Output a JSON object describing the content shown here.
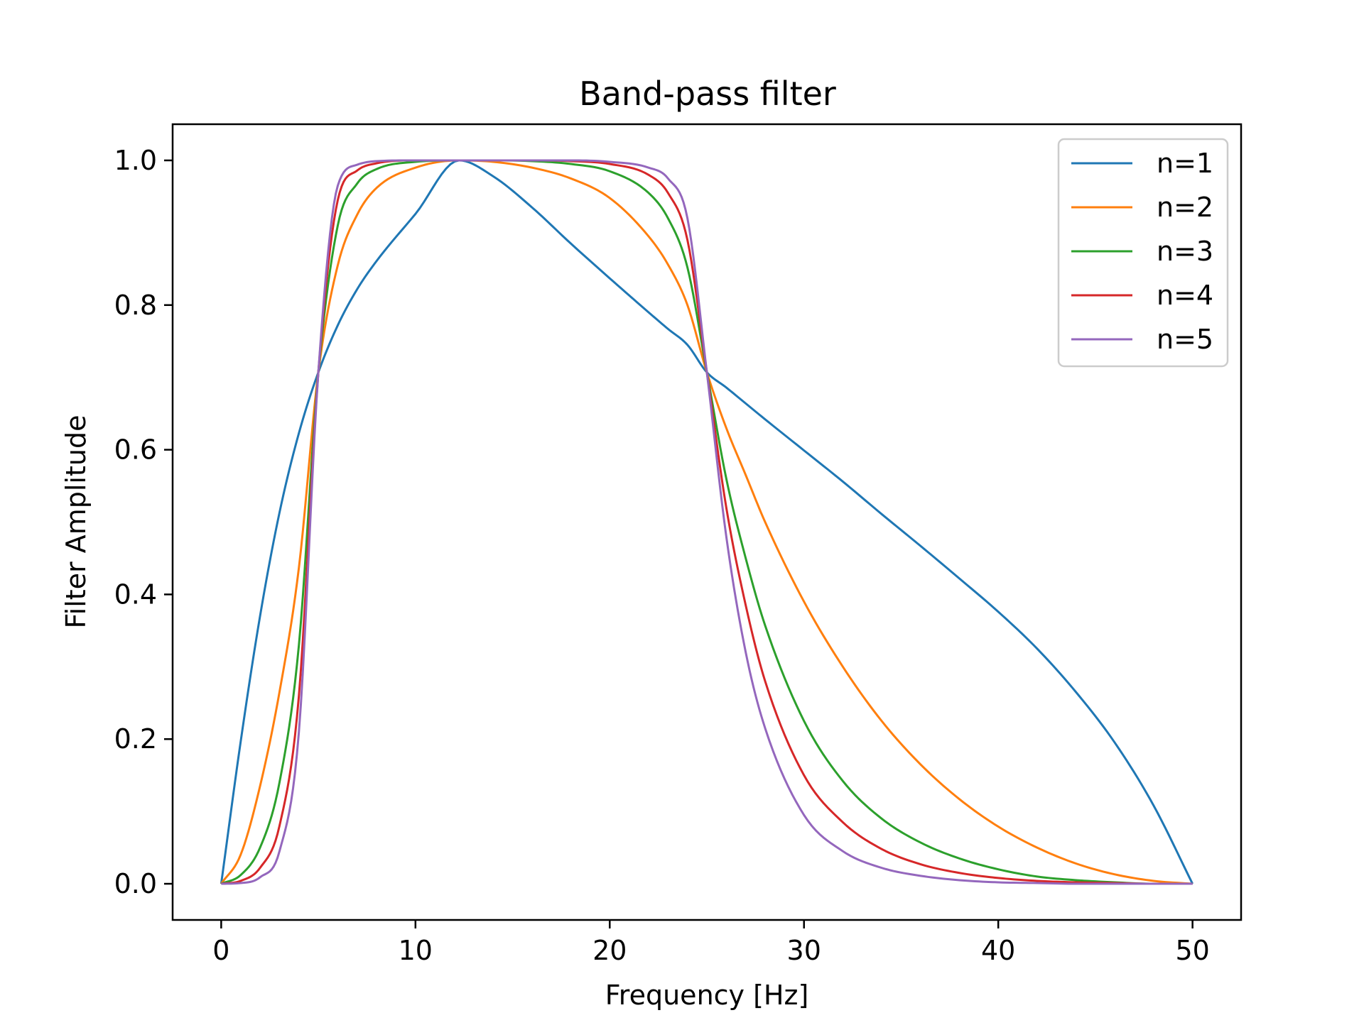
{
  "chart_data": {
    "type": "line",
    "title": "Band-pass filter",
    "xlabel": "Frequency [Hz]",
    "ylabel": "Filter Amplitude",
    "xlim": [
      -2.5,
      52.5
    ],
    "ylim": [
      -0.05,
      1.05
    ],
    "xticks": [
      0,
      10,
      20,
      30,
      40,
      50
    ],
    "yticks": [
      0.0,
      0.2,
      0.4,
      0.6,
      0.8,
      1.0
    ],
    "grid": false,
    "legend_position": "top-right",
    "x": [
      0,
      1,
      2,
      3,
      4,
      5,
      6,
      7,
      8,
      10,
      12.25,
      14,
      16,
      18,
      20,
      22,
      23,
      24,
      25,
      26,
      27,
      28,
      30,
      32,
      34,
      36,
      38,
      40,
      42,
      44,
      46,
      48,
      50
    ],
    "series": [
      {
        "name": "n=1",
        "color": "#1f77b4",
        "values": [
          0.0,
          0.196,
          0.37,
          0.513,
          0.623,
          0.707,
          0.772,
          0.822,
          0.861,
          0.926,
          1.0,
          0.978,
          0.935,
          0.885,
          0.837,
          0.79,
          0.767,
          0.745,
          0.707,
          0.686,
          0.664,
          0.642,
          0.599,
          0.556,
          0.511,
          0.467,
          0.422,
          0.376,
          0.325,
          0.265,
          0.195,
          0.108,
          0.0
        ]
      },
      {
        "name": "n=2",
        "color": "#ff7f0e",
        "values": [
          0.0,
          0.04,
          0.135,
          0.265,
          0.437,
          0.707,
          0.855,
          0.925,
          0.962,
          0.99,
          1.0,
          0.998,
          0.99,
          0.975,
          0.948,
          0.895,
          0.856,
          0.8,
          0.707,
          0.63,
          0.565,
          0.5,
          0.39,
          0.3,
          0.225,
          0.165,
          0.117,
          0.079,
          0.05,
          0.028,
          0.013,
          0.004,
          0.0
        ]
      },
      {
        "name": "n=3",
        "color": "#2ca02c",
        "values": [
          0.0,
          0.012,
          0.05,
          0.14,
          0.33,
          0.707,
          0.91,
          0.968,
          0.988,
          0.998,
          1.0,
          1.0,
          0.999,
          0.995,
          0.985,
          0.955,
          0.92,
          0.852,
          0.707,
          0.56,
          0.45,
          0.357,
          0.225,
          0.142,
          0.09,
          0.057,
          0.035,
          0.02,
          0.01,
          0.005,
          0.002,
          0.0,
          0.0
        ]
      },
      {
        "name": "n=4",
        "color": "#d62728",
        "values": [
          0.0,
          0.004,
          0.022,
          0.08,
          0.26,
          0.707,
          0.945,
          0.986,
          0.996,
          1.0,
          1.0,
          1.0,
          1.0,
          0.999,
          0.995,
          0.98,
          0.955,
          0.89,
          0.707,
          0.52,
          0.385,
          0.28,
          0.15,
          0.085,
          0.048,
          0.027,
          0.015,
          0.008,
          0.004,
          0.002,
          0.001,
          0.0,
          0.0
        ]
      },
      {
        "name": "n=5",
        "color": "#9467bd",
        "values": [
          0.0,
          0.001,
          0.009,
          0.045,
          0.21,
          0.707,
          0.965,
          0.994,
          0.999,
          1.0,
          1.0,
          1.0,
          1.0,
          1.0,
          0.998,
          0.99,
          0.975,
          0.92,
          0.707,
          0.48,
          0.32,
          0.215,
          0.095,
          0.045,
          0.022,
          0.011,
          0.005,
          0.002,
          0.001,
          0.0,
          0.0,
          0.0,
          0.0
        ]
      }
    ]
  }
}
